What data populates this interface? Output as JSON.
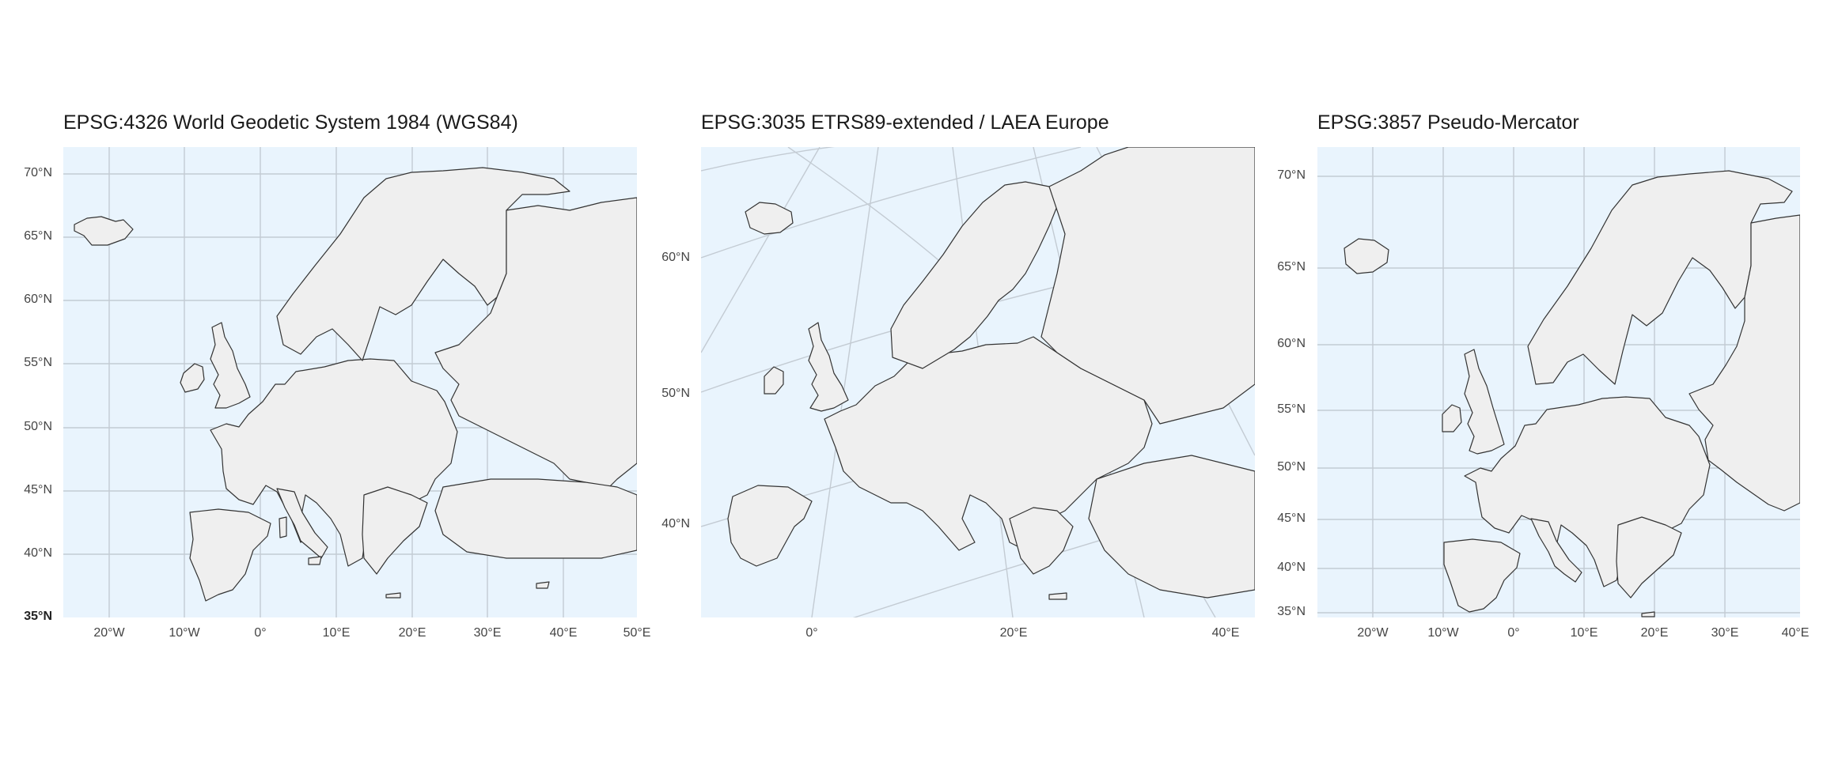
{
  "panels": [
    {
      "title": "EPSG:4326 World Geodetic System 1984 (WGS84)",
      "y_labels": [
        "70°N",
        "65°N",
        "60°N",
        "55°N",
        "50°N",
        "45°N",
        "40°N",
        "35°N"
      ],
      "x_labels": [
        "20°W",
        "10°W",
        "0°",
        "10°E",
        "20°E",
        "30°E",
        "40°E",
        "50°E"
      ]
    },
    {
      "title": "EPSG:3035 ETRS89-extended / LAEA Europe",
      "y_labels": [
        "60°N",
        "50°N",
        "40°N"
      ],
      "x_labels": [
        "0°",
        "20°E",
        "40°E"
      ]
    },
    {
      "title": "EPSG:3857 Pseudo-Mercator",
      "y_labels": [
        "70°N",
        "65°N",
        "60°N",
        "55°N",
        "50°N",
        "45°N",
        "40°N",
        "35°N"
      ],
      "x_labels": [
        "20°W",
        "10°W",
        "0°",
        "10°E",
        "20°E",
        "30°E",
        "40°E"
      ]
    }
  ],
  "colors": {
    "sea": "#e9f4fd",
    "land": "#efefef",
    "border": "#333333",
    "graticule": "#c3cbd3"
  }
}
